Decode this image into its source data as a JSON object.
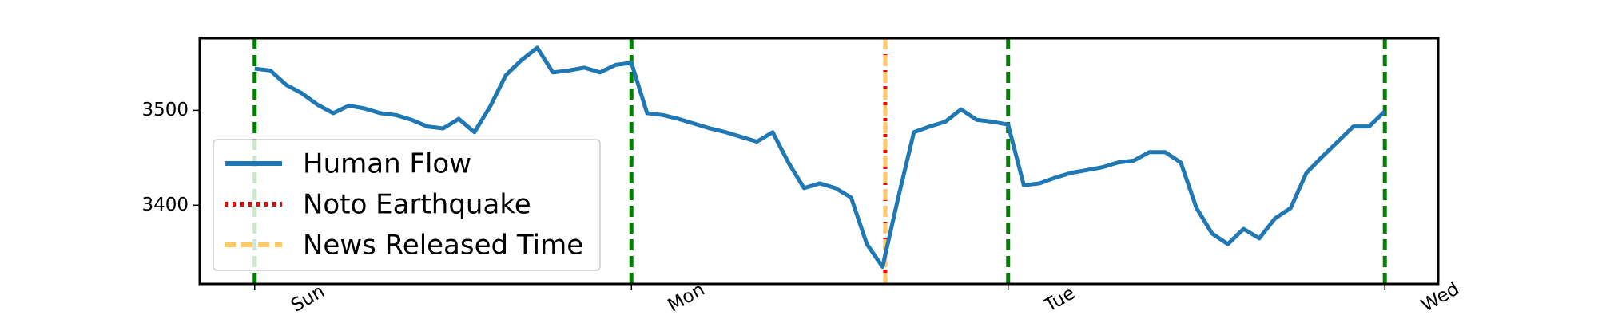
{
  "chart_data": {
    "type": "line",
    "x": [
      0,
      1,
      2,
      3,
      4,
      5,
      6,
      7,
      8,
      9,
      10,
      11,
      12,
      13,
      14,
      15,
      16,
      17,
      18,
      19,
      20,
      21,
      22,
      23,
      24,
      25,
      26,
      27,
      28,
      29,
      30,
      31,
      32,
      33,
      34,
      35,
      36,
      37,
      38,
      39,
      40,
      41,
      42,
      43,
      44,
      45,
      46,
      47,
      48,
      49,
      50,
      51,
      52,
      53,
      54,
      55,
      56,
      57,
      58,
      59,
      60,
      61,
      62,
      63,
      64,
      65,
      66,
      67,
      68,
      69,
      70,
      71,
      72
    ],
    "series": [
      {
        "name": "Human Flow",
        "color": "#1f77b4",
        "values": [
          3544,
          3542,
          3527,
          3518,
          3506,
          3497,
          3505,
          3502,
          3497,
          3495,
          3490,
          3483,
          3481,
          3491,
          3477,
          3504,
          3537,
          3553,
          3566,
          3540,
          3542,
          3545,
          3540,
          3548,
          3550,
          3497,
          3495,
          3491,
          3486,
          3481,
          3477,
          3472,
          3467,
          3477,
          3445,
          3418,
          3423,
          3418,
          3408,
          3359,
          3335,
          3408,
          3477,
          3483,
          3488,
          3501,
          3490,
          3488,
          3485,
          3421,
          3423,
          3429,
          3434,
          3437,
          3440,
          3445,
          3447,
          3456,
          3456,
          3445,
          3397,
          3370,
          3359,
          3375,
          3365,
          3386,
          3397,
          3434,
          3451,
          3467,
          3483,
          3483,
          3499
        ]
      }
    ],
    "events": [
      {
        "name": "Noto Earthquake",
        "x": 40.17,
        "color": "red",
        "style": "dotted"
      },
      {
        "name": "News Released Time",
        "x": 40.17,
        "color": "#ffc966",
        "style": "dashed"
      }
    ],
    "day_line_color": "green",
    "xlim": [
      -3.5,
      75.4
    ],
    "xticks": [
      {
        "value": 0,
        "label": "Sun"
      },
      {
        "value": 24,
        "label": "Mon"
      },
      {
        "value": 48,
        "label": "Tue"
      },
      {
        "value": 72,
        "label": "Wed"
      }
    ],
    "ylim": [
      3317,
      3576
    ],
    "yticks": [
      3400,
      3500
    ],
    "legend": "lower left"
  }
}
